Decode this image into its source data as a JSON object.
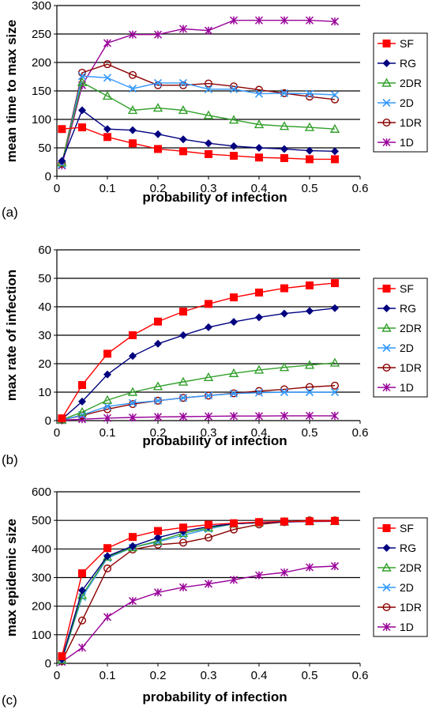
{
  "series_styles": [
    {
      "name": "SF",
      "color": "#ff0000",
      "marker": "square"
    },
    {
      "name": "RG",
      "color": "#000080",
      "marker": "diamond"
    },
    {
      "name": "2DR",
      "color": "#33a02c",
      "marker": "triangle-open"
    },
    {
      "name": "2D",
      "color": "#3399ff",
      "marker": "x"
    },
    {
      "name": "1DR",
      "color": "#8b0000",
      "marker": "circle-open"
    },
    {
      "name": "1D",
      "color": "#990099",
      "marker": "star"
    }
  ],
  "chart_data": [
    {
      "type": "line",
      "panel_label": "(a)",
      "xlabel": "probability of infection",
      "ylabel": "mean time to max size",
      "xlim": [
        0,
        0.6
      ],
      "ylim": [
        0,
        300
      ],
      "xticks": [
        "0",
        "0.1",
        "0.2",
        "0.3",
        "0.4",
        "0.5",
        "0.6"
      ],
      "yticks": [
        "0",
        "50",
        "100",
        "150",
        "200",
        "250",
        "300"
      ],
      "grid": "horizontal",
      "legend": "right",
      "x": [
        0.01,
        0.05,
        0.1,
        0.15,
        0.2,
        0.25,
        0.3,
        0.35,
        0.4,
        0.45,
        0.5,
        0.55
      ],
      "series": [
        {
          "name": "SF",
          "values": [
            83,
            86,
            69,
            58,
            48,
            44,
            39,
            36,
            33,
            32,
            30,
            30
          ]
        },
        {
          "name": "RG",
          "values": [
            27,
            116,
            83,
            81,
            74,
            65,
            58,
            53,
            50,
            48,
            45,
            44
          ]
        },
        {
          "name": "2DR",
          "values": [
            24,
            165,
            141,
            116,
            120,
            116,
            107,
            99,
            91,
            88,
            86,
            83
          ]
        },
        {
          "name": "2D",
          "values": [
            21,
            176,
            173,
            154,
            164,
            164,
            153,
            153,
            145,
            146,
            145,
            143
          ]
        },
        {
          "name": "1DR",
          "values": [
            22,
            182,
            197,
            178,
            160,
            160,
            163,
            158,
            152,
            146,
            140,
            135
          ]
        },
        {
          "name": "1D",
          "values": [
            19,
            160,
            234,
            249,
            249,
            259,
            256,
            274,
            274,
            274,
            274,
            272
          ]
        }
      ]
    },
    {
      "type": "line",
      "panel_label": "(b)",
      "xlabel": "probability of infection",
      "ylabel": "max rate of infection",
      "xlim": [
        0,
        0.6
      ],
      "ylim": [
        0,
        60
      ],
      "xticks": [
        "0",
        "0.1",
        "0.2",
        "0.3",
        "0.4",
        "0.5",
        "0.6"
      ],
      "yticks": [
        "0",
        "10",
        "20",
        "30",
        "40",
        "50",
        "60"
      ],
      "grid": "horizontal",
      "legend": "right",
      "x": [
        0.01,
        0.05,
        0.1,
        0.15,
        0.2,
        0.25,
        0.3,
        0.35,
        0.4,
        0.45,
        0.5,
        0.55
      ],
      "series": [
        {
          "name": "SF",
          "values": [
            0.8,
            12.5,
            23.5,
            30,
            34.8,
            38.3,
            41,
            43.3,
            45,
            46.5,
            47.5,
            48.3
          ]
        },
        {
          "name": "RG",
          "values": [
            0.5,
            6.7,
            16.2,
            22.7,
            27,
            30,
            32.8,
            34.7,
            36.3,
            37.6,
            38.5,
            39.5
          ]
        },
        {
          "name": "2DR",
          "values": [
            0.3,
            3,
            7.2,
            10,
            12,
            13.6,
            15.2,
            16.6,
            17.8,
            18.7,
            19.5,
            20.3
          ]
        },
        {
          "name": "2D",
          "values": [
            0.2,
            2,
            5,
            6.2,
            7,
            8,
            8.8,
            9.5,
            9.8,
            10,
            10,
            10
          ]
        },
        {
          "name": "1DR",
          "values": [
            0.2,
            1.8,
            4,
            5.8,
            7,
            8,
            8.8,
            9.6,
            10.4,
            11,
            11.8,
            12.3
          ]
        },
        {
          "name": "1D",
          "values": [
            0.1,
            0.5,
            0.9,
            1.1,
            1.3,
            1.4,
            1.5,
            1.6,
            1.6,
            1.7,
            1.7,
            1.7
          ]
        }
      ]
    },
    {
      "type": "line",
      "panel_label": "(c)",
      "xlabel": "probability of infection",
      "ylabel": "max epidemic size",
      "xlim": [
        0,
        0.6
      ],
      "ylim": [
        0,
        600
      ],
      "xticks": [
        "0",
        "0.1",
        "0.2",
        "0.3",
        "0.4",
        "0.5",
        "0.6"
      ],
      "yticks": [
        "0",
        "100",
        "200",
        "300",
        "400",
        "500",
        "600"
      ],
      "grid": "horizontal",
      "legend": "right",
      "x": [
        0.01,
        0.05,
        0.1,
        0.15,
        0.2,
        0.25,
        0.3,
        0.35,
        0.4,
        0.45,
        0.5,
        0.55
      ],
      "series": [
        {
          "name": "SF",
          "values": [
            25,
            315,
            403,
            442,
            463,
            475,
            485,
            490,
            494,
            496,
            497,
            498
          ]
        },
        {
          "name": "RG",
          "values": [
            15,
            255,
            375,
            410,
            440,
            462,
            478,
            488,
            492,
            495,
            496,
            497
          ]
        },
        {
          "name": "2DR",
          "values": [
            12,
            238,
            372,
            405,
            428,
            455,
            474,
            488,
            492,
            495,
            497,
            497
          ]
        },
        {
          "name": "2D",
          "values": [
            10,
            232,
            368,
            405,
            425,
            448,
            470,
            488,
            492,
            494,
            496,
            497
          ]
        },
        {
          "name": "1DR",
          "values": [
            8,
            150,
            332,
            398,
            415,
            422,
            440,
            468,
            486,
            494,
            500,
            500
          ]
        },
        {
          "name": "1D",
          "values": [
            5,
            55,
            162,
            218,
            248,
            266,
            278,
            292,
            308,
            318,
            336,
            340
          ]
        }
      ]
    }
  ]
}
